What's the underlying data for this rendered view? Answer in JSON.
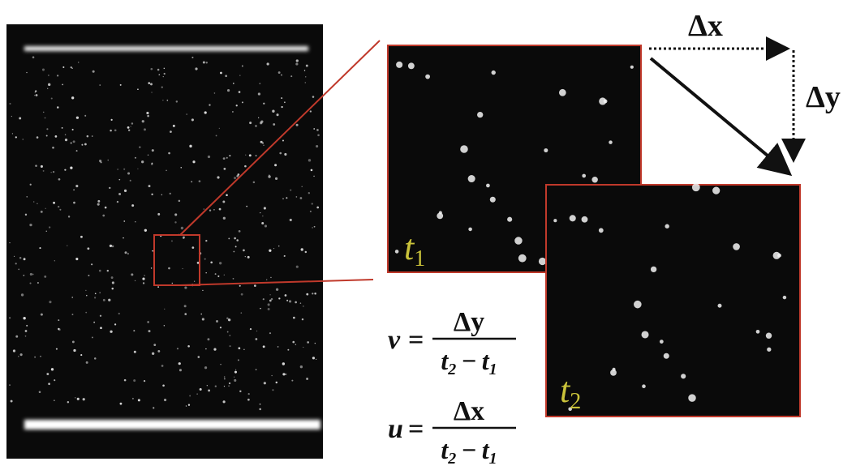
{
  "labels": {
    "dx": "Δx",
    "dy": "Δy"
  },
  "frames": [
    {
      "base": "t",
      "sub": "1"
    },
    {
      "base": "t",
      "sub": "2"
    }
  ],
  "equations": [
    {
      "variable": "v",
      "sign": "=",
      "numerator": "Δy",
      "denominator": {
        "left": {
          "base": "t",
          "sub": "2"
        },
        "op": "−",
        "right": {
          "base": "t",
          "sub": "1"
        }
      }
    },
    {
      "variable": "u",
      "sign": "=",
      "numerator": "Δx",
      "denominator": {
        "left": {
          "base": "t",
          "sub": "2"
        },
        "op": "−",
        "right": {
          "base": "t",
          "sub": "1"
        }
      }
    }
  ]
}
